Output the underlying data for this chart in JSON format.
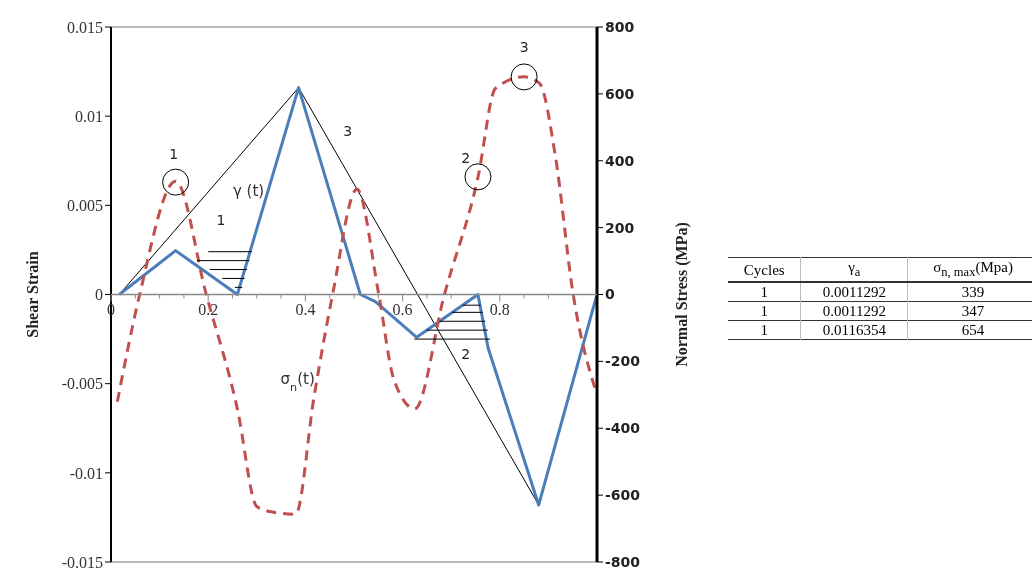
{
  "chart_data": [
    {
      "type": "line",
      "ylabel": "Shear Strain",
      "y2label": "Normal Stress (MPa)",
      "xlim": [
        0,
        1
      ],
      "xticks": [
        0,
        {
          "value": 0.05,
          "label": null
        },
        {
          "value": 0.1,
          "label": null
        },
        {
          "value": 0.15,
          "label": null
        },
        0.2,
        {
          "value": 0.25,
          "label": null
        },
        {
          "value": 0.3,
          "label": null
        },
        {
          "value": 0.35,
          "label": null
        },
        0.4,
        {
          "value": 0.45,
          "label": null
        },
        {
          "value": 0.5,
          "label": null
        },
        {
          "value": 0.55,
          "label": null
        },
        0.6,
        {
          "value": 0.65,
          "label": null
        },
        {
          "value": 0.7,
          "label": null
        },
        {
          "value": 0.75,
          "label": null
        },
        0.8,
        {
          "value": 0.85,
          "label": null
        },
        {
          "value": 0.9,
          "label": null
        },
        {
          "value": 0.95,
          "label": null
        }
      ],
      "ylim": [
        -0.015,
        0.015
      ],
      "yticks": [
        -0.015,
        -0.01,
        -0.005,
        0,
        0.005,
        0.01,
        0.015
      ],
      "y2lim": [
        -800,
        800
      ],
      "y2ticks": [
        -800,
        -600,
        -400,
        -200,
        0,
        200,
        400,
        600,
        800
      ],
      "grid": false,
      "legend": false,
      "marker": "none",
      "line_style": "solid",
      "series": [
        {
          "type": "line",
          "color": "#000000",
          "x": [
            0.017,
            0.386,
            0.88,
            1.0
          ],
          "values": [
            0,
            0.0116,
            -0.0118,
            0
          ]
        },
        {
          "type": "line",
          "name": "γ (t)",
          "color": "#4a7ebb",
          "x": [
            0.017,
            0.133,
            0.26,
            0.386,
            0.477,
            0.513,
            0.544,
            0.629,
            0.755,
            0.776,
            0.88,
            1.0
          ],
          "values": [
            0,
            0.00246,
            0,
            0.0116,
            0.0033,
            0,
            -0.0004,
            -0.0024,
            0,
            -0.003,
            -0.0118,
            0
          ]
        },
        {
          "type": "line",
          "name": "σ$_{n}$(t)",
          "axis": "y2",
          "line_style": "dashed",
          "color": "#c0504d",
          "x": [
            0.013,
            0.059,
            0.133,
            0.196,
            0.26,
            0.3,
            0.33,
            0.38,
            0.418,
            0.456,
            0.506,
            0.551,
            0.582,
            0.625,
            0.686,
            0.755,
            0.791,
            0.85,
            0.882,
            0.914,
            0.951,
            1.0
          ],
          "values": [
            -321,
            0,
            339,
            0,
            -342,
            -634,
            -650,
            -657,
            -304,
            0,
            315,
            0,
            -254,
            -342,
            0,
            350,
            616,
            651,
            631,
            417,
            0,
            -300
          ]
        }
      ],
      "annotations": [
        "1",
        "1",
        "3",
        "2",
        "2",
        "3"
      ]
    },
    {
      "type": "other",
      "categories": [
        "Cycles",
        "γ$_{a}$",
        "σ$_{n, max}$(Mpa)"
      ],
      "annotations": [
        "1",
        "0.0011292",
        "339",
        "1",
        "0.0011292",
        "347",
        "1",
        "0.0116354",
        "654"
      ]
    }
  ]
}
